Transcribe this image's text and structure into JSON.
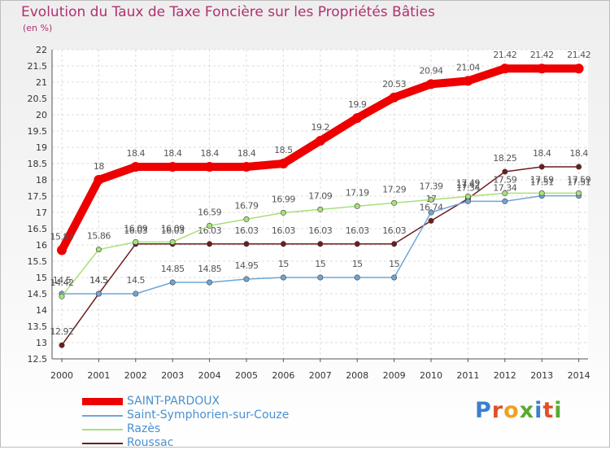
{
  "title": "Evolution du Taux de Taxe Foncière sur les Propriétés Bâties",
  "unit": "(en %)",
  "brand": {
    "parts": [
      {
        "text": "P",
        "color": "#3a7fd0"
      },
      {
        "text": "r",
        "color": "#e0502a"
      },
      {
        "text": "o",
        "color": "#f0a020"
      },
      {
        "text": "x",
        "color": "#5aaa30"
      },
      {
        "text": "i",
        "color": "#3a7fd0"
      },
      {
        "text": "t",
        "color": "#e0502a"
      },
      {
        "text": "i",
        "color": "#5aaa30"
      }
    ]
  },
  "chart_data": {
    "type": "line",
    "title": "Evolution du Taux de Taxe Foncière sur les Propriétés Bâties",
    "ylabel": "(en %)",
    "xlabel": "",
    "ylim": [
      12.5,
      22
    ],
    "yticks": [
      "12.5",
      "13",
      "13.5",
      "14",
      "14.5",
      "15",
      "15.5",
      "16",
      "16.5",
      "17",
      "17.5",
      "18",
      "18.5",
      "19",
      "19.5",
      "20",
      "20.5",
      "21",
      "21.5",
      "22"
    ],
    "categories": [
      "2000",
      "2001",
      "2002",
      "2003",
      "2004",
      "2005",
      "2006",
      "2007",
      "2008",
      "2009",
      "2010",
      "2011",
      "2012",
      "2013",
      "2014"
    ],
    "grid": true,
    "series": [
      {
        "name": "Roussac",
        "color": "#6e1c1c",
        "bold": false,
        "values": [
          12.92,
          14.5,
          16.03,
          16.03,
          16.03,
          16.03,
          16.03,
          16.03,
          16.03,
          16.03,
          16.74,
          17.42,
          18.25,
          18.4,
          18.4
        ],
        "labels": [
          "12.92",
          "14.5",
          "16.03",
          "16.03",
          "16.03",
          "16.03",
          "16.03",
          "16.03",
          "16.03",
          "16.03",
          "16.74",
          "17.42",
          "18.25",
          "18.4",
          "18.4"
        ]
      },
      {
        "name": "Saint-Symphorien-sur-Couze",
        "color": "#6ea6d6",
        "bold": false,
        "values": [
          14.5,
          14.5,
          14.5,
          14.85,
          14.85,
          14.95,
          15,
          15,
          15,
          15,
          17,
          17.34,
          17.34,
          17.51,
          17.51
        ],
        "labels": [
          "14.5",
          "14.5",
          "14.5",
          "14.85",
          "14.85",
          "14.95",
          "15",
          "15",
          "15",
          "15",
          "17",
          "17.34",
          "17.34",
          "17.51",
          "17.51"
        ]
      },
      {
        "name": "Razès",
        "color": "#a8e07a",
        "bold": false,
        "values": [
          14.42,
          15.86,
          16.09,
          16.09,
          16.59,
          16.79,
          16.99,
          17.09,
          17.19,
          17.29,
          17.39,
          17.49,
          17.59,
          17.59,
          17.59
        ],
        "labels": [
          "14.42",
          "15.86",
          "16.09",
          "16.09",
          "16.59",
          "16.79",
          "16.99",
          "17.09",
          "17.19",
          "17.29",
          "17.39",
          "17.49",
          "17.59",
          "17.59",
          "17.59"
        ]
      },
      {
        "name": "SAINT-PARDOUX",
        "color": "#ee0000",
        "bold": true,
        "values": [
          15.84,
          18,
          18.4,
          18.4,
          18.4,
          18.4,
          18.5,
          19.2,
          19.9,
          20.53,
          20.94,
          21.04,
          21.42,
          21.42,
          21.42
        ],
        "labels": [
          "15.84",
          "18",
          "18.4",
          "18.4",
          "18.4",
          "18.4",
          "18.5",
          "19.2",
          "19.9",
          "20.53",
          "20.94",
          "21.04",
          "21.42",
          "21.42",
          "21.42"
        ]
      }
    ],
    "legend_order": [
      "SAINT-PARDOUX",
      "Saint-Symphorien-sur-Couze",
      "Razès",
      "Roussac"
    ]
  }
}
